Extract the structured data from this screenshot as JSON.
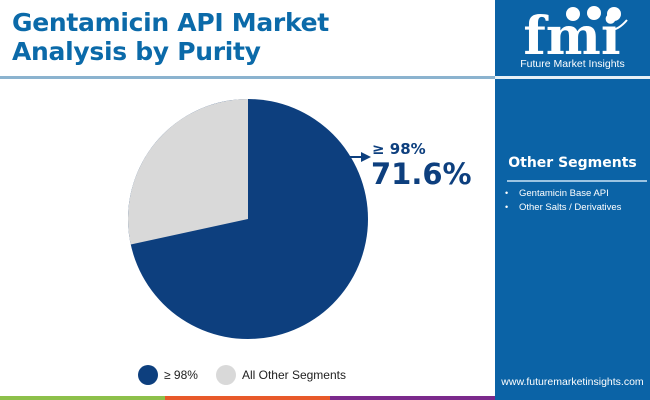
{
  "header": {
    "title": "Gentamicin API Market Analysis by Purity"
  },
  "brand": {
    "logo_letters": "fmi",
    "logo_text": "Future Market Insights",
    "website": "www.futuremarketinsights.com",
    "panel_color": "#0b63a6"
  },
  "other_segments": {
    "title": "Other Segments",
    "items": [
      "Gentamicin Base API",
      "Other Salts / Derivatives"
    ]
  },
  "callout": {
    "label": "≥ 98%",
    "value": "71.6%"
  },
  "legend": {
    "items": [
      {
        "label": "≥ 98%",
        "color": "#0d3f7e"
      },
      {
        "label": "All Other Segments",
        "color": "#d9d9d9"
      }
    ]
  },
  "footer_bar": {
    "colors": [
      "#8dc04a",
      "#e8592a",
      "#7b2a8c"
    ]
  },
  "chart_data": {
    "type": "pie",
    "title": "Gentamicin API Market Analysis by Purity",
    "categories": [
      "≥ 98%",
      "All Other Segments"
    ],
    "values": [
      71.6,
      28.4
    ],
    "colors": [
      "#0d3f7e",
      "#d9d9d9"
    ],
    "annotations": [
      {
        "label": "≥ 98%",
        "value": "71.6%"
      }
    ],
    "legend_position": "bottom"
  }
}
